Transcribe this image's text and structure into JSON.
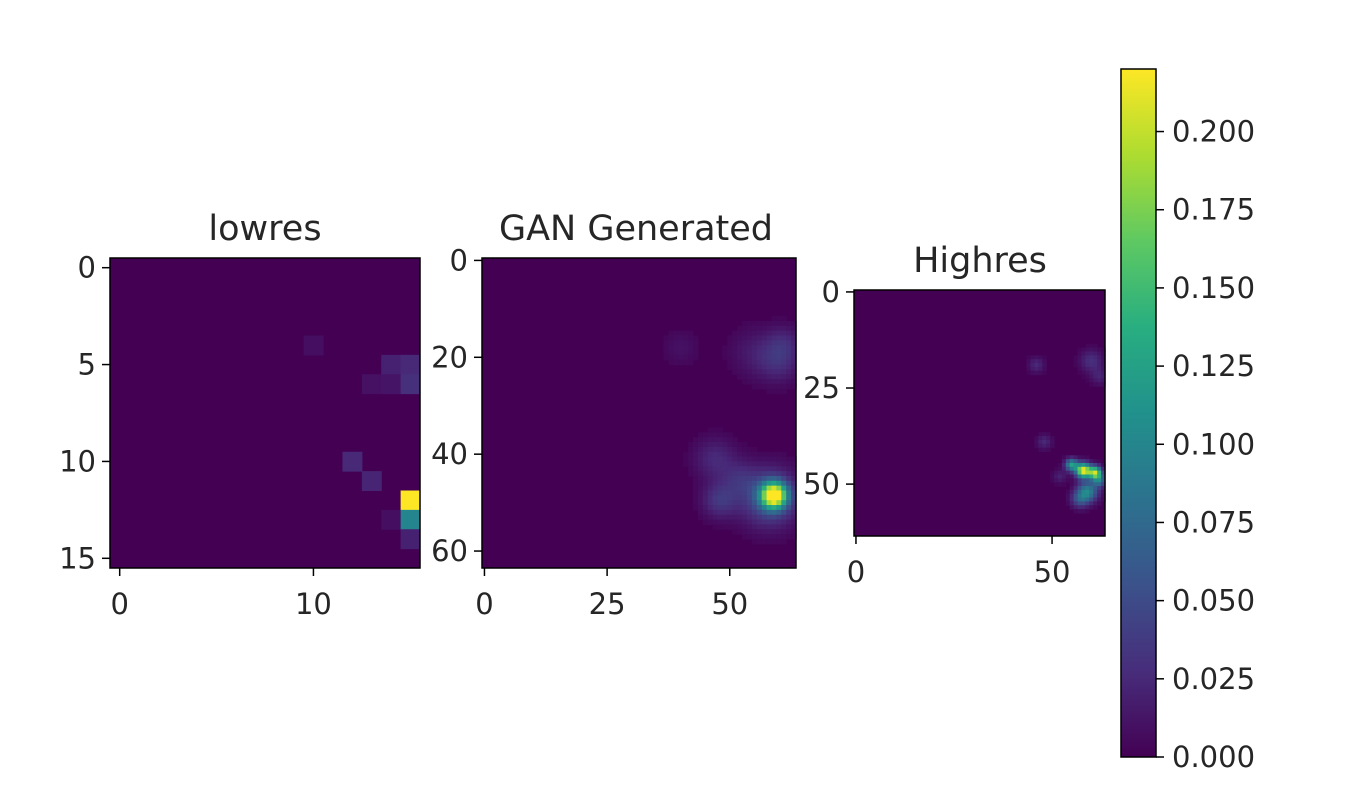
{
  "chart_data": [
    {
      "type": "heatmap",
      "title": "lowres",
      "grid": false,
      "shape": [
        16,
        16
      ],
      "x_ticks": [
        "0",
        "10"
      ],
      "y_ticks": [
        "0",
        "5",
        "10",
        "15"
      ],
      "nonzero_cells": [
        {
          "row": 4,
          "col": 10,
          "value": 0.008
        },
        {
          "row": 5,
          "col": 14,
          "value": 0.02
        },
        {
          "row": 5,
          "col": 15,
          "value": 0.025
        },
        {
          "row": 6,
          "col": 13,
          "value": 0.01
        },
        {
          "row": 6,
          "col": 14,
          "value": 0.012
        },
        {
          "row": 6,
          "col": 15,
          "value": 0.03
        },
        {
          "row": 10,
          "col": 12,
          "value": 0.025
        },
        {
          "row": 11,
          "col": 13,
          "value": 0.022
        },
        {
          "row": 12,
          "col": 15,
          "value": 0.22
        },
        {
          "row": 13,
          "col": 14,
          "value": 0.008
        },
        {
          "row": 13,
          "col": 15,
          "value": 0.1
        },
        {
          "row": 14,
          "col": 15,
          "value": 0.02
        }
      ]
    },
    {
      "type": "heatmap",
      "title": "GAN Generated",
      "grid": false,
      "shape": [
        64,
        64
      ],
      "x_ticks": [
        "0",
        "25",
        "50"
      ],
      "y_ticks": [
        "0",
        "20",
        "40",
        "60"
      ],
      "blobs": [
        {
          "x": 59,
          "y": 48.5,
          "peak": 0.22,
          "sigma": 1.8
        },
        {
          "x": 58,
          "y": 49,
          "peak": 0.06,
          "sigma": 4
        },
        {
          "x": 48,
          "y": 49.5,
          "peak": 0.035,
          "sigma": 2.5
        },
        {
          "x": 47,
          "y": 41,
          "peak": 0.025,
          "sigma": 3
        },
        {
          "x": 52,
          "y": 45,
          "peak": 0.02,
          "sigma": 2.5
        },
        {
          "x": 60,
          "y": 21,
          "peak": 0.025,
          "sigma": 3
        },
        {
          "x": 55,
          "y": 19,
          "peak": 0.015,
          "sigma": 3.5
        },
        {
          "x": 61,
          "y": 17,
          "peak": 0.02,
          "sigma": 2.5
        },
        {
          "x": 40,
          "y": 18,
          "peak": 0.01,
          "sigma": 2.5
        }
      ]
    },
    {
      "type": "heatmap",
      "title": "Highres",
      "grid": false,
      "shape": [
        64,
        64
      ],
      "x_ticks": [
        "0",
        "50"
      ],
      "y_ticks": [
        "0",
        "25",
        "50"
      ],
      "blobs": [
        {
          "x": 58,
          "y": 46.5,
          "peak": 0.22,
          "sigma": 1.3
        },
        {
          "x": 61,
          "y": 47,
          "peak": 0.18,
          "sigma": 1.1
        },
        {
          "x": 55,
          "y": 45,
          "peak": 0.12,
          "sigma": 1.1
        },
        {
          "x": 59,
          "y": 52,
          "peak": 0.1,
          "sigma": 1.8
        },
        {
          "x": 57,
          "y": 54,
          "peak": 0.05,
          "sigma": 1.5
        },
        {
          "x": 62,
          "y": 49,
          "peak": 0.08,
          "sigma": 1.2
        },
        {
          "x": 46,
          "y": 19,
          "peak": 0.025,
          "sigma": 1.4
        },
        {
          "x": 60,
          "y": 18,
          "peak": 0.03,
          "sigma": 2
        },
        {
          "x": 62,
          "y": 22,
          "peak": 0.02,
          "sigma": 1.5
        },
        {
          "x": 48,
          "y": 39,
          "peak": 0.025,
          "sigma": 1.3
        },
        {
          "x": 52,
          "y": 48,
          "peak": 0.02,
          "sigma": 1.2
        }
      ]
    }
  ],
  "colorbar": {
    "colormap": "viridis",
    "range": [
      0.0,
      0.22
    ],
    "ticks": [
      0.0,
      0.025,
      0.05,
      0.075,
      0.1,
      0.125,
      0.15,
      0.175,
      0.2
    ],
    "tick_labels": [
      "0.000",
      "0.025",
      "0.050",
      "0.075",
      "0.100",
      "0.125",
      "0.150",
      "0.175",
      "0.200"
    ]
  }
}
